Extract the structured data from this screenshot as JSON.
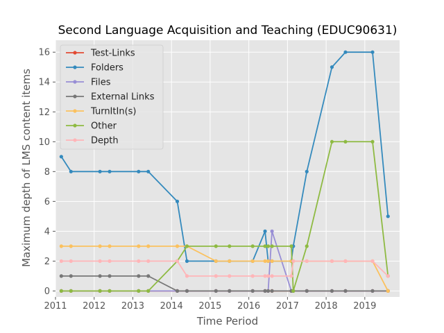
{
  "chart_data": {
    "type": "line",
    "title": "Second Language Acquisition and Teaching (EDUC90631)",
    "xlabel": "Time Period",
    "ylabel": "Maximum depth of LMS content items",
    "xlim": [
      2011.0,
      2019.9
    ],
    "ylim": [
      -0.4,
      16.8
    ],
    "xticks": [
      2011,
      2012,
      2013,
      2014,
      2015,
      2016,
      2017,
      2018,
      2019
    ],
    "yticks": [
      0,
      2,
      4,
      6,
      8,
      10,
      12,
      14,
      16
    ],
    "grid": true,
    "legend_position": "top-left",
    "x": [
      2011.15,
      2011.4,
      2012.15,
      2012.4,
      2013.15,
      2013.4,
      2014.15,
      2014.4,
      2015.15,
      2015.5,
      2016.1,
      2016.42,
      2016.5,
      2016.6,
      2017.1,
      2017.15,
      2017.5,
      2018.15,
      2018.5,
      2019.2,
      2019.6
    ],
    "series": [
      {
        "name": "Test-Links",
        "color": "#e24a33",
        "values": [
          0,
          0,
          0,
          0,
          0,
          0,
          0,
          0,
          0,
          0,
          0,
          0,
          0,
          0,
          0,
          0,
          0,
          0,
          0,
          0,
          0
        ]
      },
      {
        "name": "Folders",
        "color": "#348abd",
        "values": [
          9,
          8,
          8,
          8,
          8,
          8,
          6,
          2,
          2,
          2,
          2,
          4,
          2,
          2,
          2,
          3,
          8,
          15,
          16,
          16,
          5
        ]
      },
      {
        "name": "Files",
        "color": "#988ed5",
        "values": [
          0,
          0,
          0,
          0,
          0,
          0,
          0,
          0,
          0,
          0,
          0,
          0,
          0,
          4,
          0,
          0,
          0,
          0,
          0,
          0,
          0
        ]
      },
      {
        "name": "External Links",
        "color": "#777777",
        "values": [
          1,
          1,
          1,
          1,
          1,
          1,
          0,
          0,
          0,
          0,
          0,
          0,
          0,
          0,
          0,
          0,
          0,
          0,
          0,
          0,
          0
        ]
      },
      {
        "name": "TurnItIn(s)",
        "color": "#fbc15e",
        "values": [
          3,
          3,
          3,
          3,
          3,
          3,
          3,
          3,
          2,
          2,
          2,
          2,
          2,
          2,
          2,
          2,
          2,
          2,
          2,
          2,
          0
        ]
      },
      {
        "name": "Other",
        "color": "#8eba42",
        "values": [
          0,
          0,
          0,
          0,
          0,
          0,
          2,
          3,
          3,
          3,
          3,
          3,
          3,
          3,
          3,
          0,
          3,
          10,
          10,
          10,
          1
        ]
      },
      {
        "name": "Depth",
        "color": "#ffb5b8",
        "values": [
          2,
          2,
          2,
          2,
          2,
          2,
          2,
          1,
          1,
          1,
          1,
          1,
          1,
          1,
          1,
          2,
          2,
          2,
          2,
          2,
          1
        ]
      }
    ]
  }
}
